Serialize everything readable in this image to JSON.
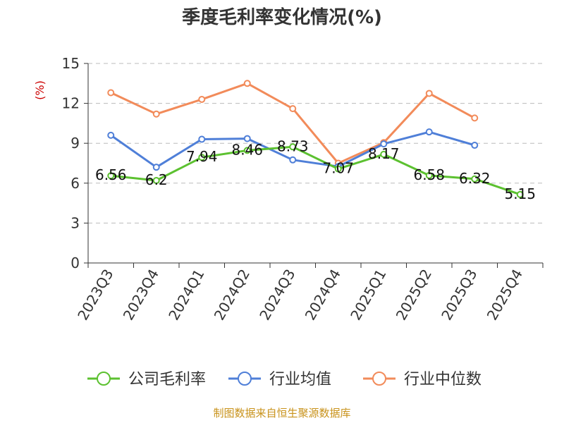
{
  "chart_data": {
    "type": "line",
    "title": "季度毛利率变化情况(%)",
    "ylabel": "(%)",
    "ylim": [
      0,
      15
    ],
    "yticks": [
      "0",
      "3",
      "6",
      "9",
      "12",
      "15"
    ],
    "categories": [
      "2023Q3",
      "2023Q4",
      "2024Q1",
      "2024Q2",
      "2024Q3",
      "2024Q4",
      "2025Q1",
      "2025Q2",
      "2025Q3",
      "2025Q4"
    ],
    "grid": "horizontal-dashed",
    "legend_position": "bottom",
    "series": [
      {
        "name": "公司毛利率",
        "color": "#5cc130",
        "values": [
          6.56,
          6.2,
          7.94,
          8.46,
          8.73,
          7.07,
          8.17,
          6.58,
          6.32,
          5.15
        ],
        "labels": [
          "6.56",
          "6.2",
          "7.94",
          "8.46",
          "8.73",
          "7.07",
          "8.17",
          "6.58",
          "6.32",
          "5.15"
        ]
      },
      {
        "name": "行业均值",
        "color": "#4f7fd8",
        "values": [
          9.6,
          7.2,
          9.3,
          9.35,
          7.75,
          7.25,
          8.95,
          9.85,
          8.85,
          null
        ]
      },
      {
        "name": "行业中位数",
        "color": "#f28b5a",
        "values": [
          12.8,
          11.2,
          12.3,
          13.5,
          11.6,
          7.5,
          9.05,
          12.75,
          10.9,
          null
        ]
      }
    ],
    "source": "制图数据来自恒生聚源数据库"
  }
}
